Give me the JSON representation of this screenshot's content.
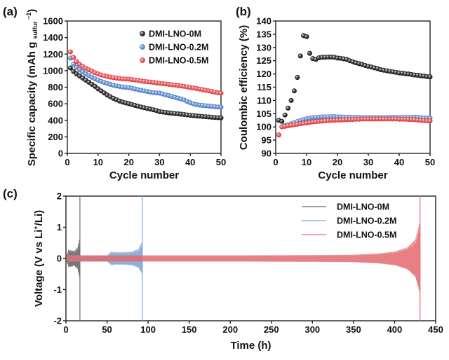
{
  "chart_data": [
    {
      "panel": "(a)",
      "type": "scatter",
      "title": "",
      "xlabel": "Cycle number",
      "ylabel": "Specific capacity (mAh g",
      "ylabel_sub": "sulfur",
      "ylabel_sup": "−1",
      "ylabel_end": ")",
      "xlim": [
        0,
        50
      ],
      "ylim": [
        0,
        1600
      ],
      "xticks": [
        0,
        10,
        20,
        30,
        40,
        50
      ],
      "yticks": [
        0,
        200,
        400,
        600,
        800,
        1000,
        1200,
        1400,
        1600
      ],
      "legend_position": "top-right",
      "x": [
        1,
        2,
        3,
        4,
        5,
        6,
        7,
        8,
        9,
        10,
        11,
        12,
        13,
        14,
        15,
        16,
        17,
        18,
        19,
        20,
        21,
        22,
        23,
        24,
        25,
        26,
        27,
        28,
        29,
        30,
        31,
        32,
        33,
        34,
        35,
        36,
        37,
        38,
        39,
        40,
        41,
        42,
        43,
        44,
        45,
        46,
        47,
        48,
        49,
        50
      ],
      "series": [
        {
          "name": "DMI-LNO-0M",
          "color": "#111111",
          "values": [
            1033,
            990,
            960,
            935,
            910,
            885,
            860,
            835,
            810,
            780,
            755,
            730,
            705,
            685,
            665,
            648,
            633,
            620,
            610,
            601,
            590,
            580,
            570,
            560,
            552,
            543,
            535,
            527,
            517,
            505,
            500,
            495,
            490,
            486,
            482,
            478,
            474,
            470,
            465,
            460,
            456,
            453,
            450,
            446,
            443,
            440,
            437,
            434,
            432,
            430
          ]
        },
        {
          "name": "DMI-LNO-0.2M",
          "color": "#4a7cc9",
          "values": [
            1152,
            1080,
            1040,
            1010,
            985,
            960,
            940,
            920,
            900,
            885,
            870,
            857,
            845,
            834,
            823,
            815,
            808,
            802,
            798,
            796,
            787,
            779,
            770,
            762,
            755,
            748,
            740,
            734,
            730,
            728,
            718,
            708,
            698,
            688,
            678,
            668,
            658,
            646,
            628,
            612,
            600,
            590,
            584,
            580,
            576,
            572,
            568,
            564,
            561,
            559
          ]
        },
        {
          "name": "DMI-LNO-0.5M",
          "color": "#e0383b",
          "values": [
            1227,
            1160,
            1110,
            1075,
            1050,
            1030,
            1010,
            995,
            975,
            960,
            948,
            938,
            930,
            922,
            915,
            910,
            905,
            900,
            898,
            897,
            892,
            887,
            882,
            876,
            870,
            866,
            862,
            858,
            852,
            848,
            843,
            839,
            835,
            830,
            826,
            820,
            815,
            810,
            803,
            797,
            790,
            784,
            777,
            770,
            763,
            756,
            748,
            740,
            734,
            728
          ]
        }
      ]
    },
    {
      "panel": "(b)",
      "type": "scatter",
      "title": "",
      "xlabel": "Cycle number",
      "ylabel": "Coulombic efficiency (%)",
      "xlim": [
        0,
        50
      ],
      "ylim": [
        90,
        140
      ],
      "xticks": [
        0,
        10,
        20,
        30,
        40,
        50
      ],
      "yticks": [
        90,
        95,
        100,
        105,
        110,
        115,
        120,
        125,
        130,
        135,
        140
      ],
      "x": [
        1,
        2,
        3,
        4,
        5,
        6,
        7,
        8,
        9,
        10,
        11,
        12,
        13,
        14,
        15,
        16,
        17,
        18,
        19,
        20,
        21,
        22,
        23,
        24,
        25,
        26,
        27,
        28,
        29,
        30,
        31,
        32,
        33,
        34,
        35,
        36,
        37,
        38,
        39,
        40,
        41,
        42,
        43,
        44,
        45,
        46,
        47,
        48,
        49,
        50
      ],
      "series": [
        {
          "name": "DMI-LNO-0M",
          "color": "#111111",
          "values": [
            102.5,
            102.1,
            104.5,
            107.1,
            110.0,
            113.6,
            118.7,
            126.8,
            134.5,
            134.1,
            127.8,
            125.8,
            125.5,
            126.1,
            126.3,
            126.3,
            126.4,
            126.4,
            126.3,
            126.0,
            125.9,
            125.7,
            125.5,
            125.0,
            124.6,
            124.2,
            123.9,
            123.6,
            123.2,
            122.9,
            122.6,
            122.3,
            122.0,
            121.6,
            121.4,
            121.2,
            121.0,
            120.8,
            120.6,
            120.4,
            120.3,
            120.1,
            120.0,
            119.8,
            119.6,
            119.5,
            119.3,
            119.2,
            119.0,
            118.9
          ]
        },
        {
          "name": "DMI-LNO-0.2M",
          "color": "#4a7cc9",
          "values": [
            97.0,
            100.1,
            100.5,
            100.8,
            101.2,
            101.6,
            102.0,
            102.4,
            102.8,
            103.1,
            103.3,
            103.5,
            103.6,
            103.7,
            103.8,
            103.8,
            103.8,
            103.9,
            103.9,
            103.8,
            103.8,
            103.7,
            103.7,
            103.7,
            103.6,
            103.6,
            103.6,
            103.5,
            103.5,
            103.5,
            103.5,
            103.5,
            103.5,
            103.5,
            103.5,
            103.5,
            103.6,
            103.6,
            103.6,
            103.6,
            103.6,
            103.6,
            103.6,
            103.6,
            103.7,
            103.6,
            103.5,
            103.4,
            103.4,
            103.3
          ]
        },
        {
          "name": "DMI-LNO-0.5M",
          "color": "#e0383b",
          "values": [
            96.9,
            100.0,
            100.2,
            100.4,
            100.6,
            100.8,
            101.0,
            101.2,
            101.4,
            101.5,
            101.7,
            101.9,
            102.0,
            102.1,
            102.2,
            102.3,
            102.4,
            102.5,
            102.5,
            102.6,
            102.6,
            102.7,
            102.7,
            102.8,
            102.8,
            102.9,
            102.9,
            103.0,
            103.0,
            103.0,
            103.0,
            103.0,
            103.0,
            103.0,
            103.0,
            103.0,
            103.0,
            103.0,
            103.0,
            102.9,
            102.9,
            102.9,
            102.8,
            102.8,
            102.7,
            102.6,
            102.5,
            102.4,
            102.3,
            102.3
          ]
        }
      ]
    },
    {
      "panel": "(c)",
      "type": "line",
      "title": "",
      "xlabel": "Time (h)",
      "ylabel": "Voltage (V vs Li",
      "ylabel_sup": "+",
      "ylabel_end": "/Li)",
      "xlim": [
        0,
        450
      ],
      "ylim": [
        -2,
        2
      ],
      "xticks": [
        0,
        50,
        100,
        150,
        200,
        250,
        300,
        350,
        400,
        450
      ],
      "yticks": [
        -2,
        -1,
        0,
        1,
        2
      ],
      "legend_position": "top-right",
      "series": [
        {
          "name": "DMI-LNO-0M",
          "color": "#6b6b6b",
          "failure_time_h": 17,
          "envelope": {
            "t": [
              1,
              3,
              5,
              10,
              14,
              16,
              17
            ],
            "amp": [
              0.12,
              0.28,
              0.27,
              0.24,
              0.35,
              0.6,
              1.1
            ]
          }
        },
        {
          "name": "DMI-LNO-0.2M",
          "color": "#7fa8d8",
          "failure_time_h": 93,
          "envelope": {
            "t": [
              1,
              10,
              30,
              50,
              55,
              60,
              70,
              80,
              88,
              92,
              93
            ],
            "amp": [
              0.1,
              0.1,
              0.1,
              0.1,
              0.22,
              0.2,
              0.2,
              0.22,
              0.3,
              0.5,
              0.85
            ]
          }
        },
        {
          "name": "DMI-LNO-0.5M",
          "color": "#e26a6f",
          "failure_time_h": 431,
          "envelope": {
            "t": [
              1,
              50,
              100,
              200,
              300,
              350,
              380,
              400,
              415,
              425,
              430,
              431
            ],
            "amp": [
              0.1,
              0.1,
              0.1,
              0.1,
              0.11,
              0.12,
              0.16,
              0.22,
              0.35,
              0.6,
              1.1,
              2.0
            ]
          }
        }
      ]
    }
  ],
  "labels": {
    "panel_a": "(a)",
    "panel_b": "(b)",
    "panel_c": "(c)"
  }
}
